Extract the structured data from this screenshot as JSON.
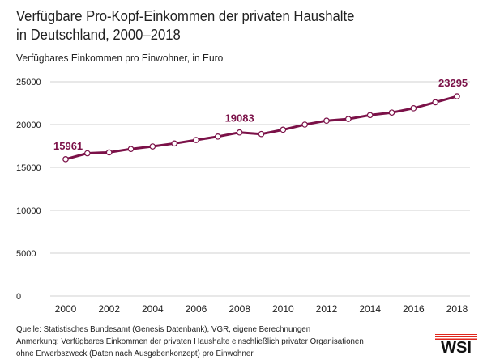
{
  "header": {
    "title_line1": "Verfügbare Pro-Kopf-Einkommen der privaten Haushalte",
    "title_line2": "in Deutschland, 2000–2018",
    "subtitle": "Verfügbares Einkommen pro Einwohner, in Euro"
  },
  "footer": {
    "source": "Quelle: Statistisches Bundesamt (Genesis Datenbank), VGR, eigene Berechnungen",
    "note_line1": "Anmerkung: Verfügbares Einkommen der privaten Haushalte einschließlich privater Organisationen",
    "note_line2": "ohne Erwerbszweck (Daten nach Ausgabenkonzept) pro Einwohner",
    "logo_text": "WSI"
  },
  "colors": {
    "series": "#7b1148",
    "grid": "#d2d2d2",
    "logo_accent": "#e1261c"
  },
  "chart_data": {
    "type": "line",
    "title": "Verfügbare Pro-Kopf-Einkommen der privaten Haushalte in Deutschland, 2000–2018",
    "subtitle": "Verfügbares Einkommen pro Einwohner, in Euro",
    "x": [
      2000,
      2001,
      2002,
      2003,
      2004,
      2005,
      2006,
      2007,
      2008,
      2009,
      2010,
      2011,
      2012,
      2013,
      2014,
      2015,
      2016,
      2017,
      2018
    ],
    "series": [
      {
        "values": [
          15961,
          16650,
          16750,
          17150,
          17450,
          17800,
          18200,
          18600,
          19083,
          18900,
          19400,
          20000,
          20450,
          20650,
          21100,
          21400,
          21900,
          22600,
          23295
        ]
      }
    ],
    "x_ticks": [
      "2000",
      "2002",
      "2004",
      "2006",
      "2008",
      "2010",
      "2012",
      "2014",
      "2016",
      "2018"
    ],
    "y_ticks": [
      "0",
      "5000",
      "10000",
      "15000",
      "20000",
      "25000"
    ],
    "xlim": [
      2000,
      2018
    ],
    "ylim": [
      0,
      25000
    ],
    "grid": true,
    "annotations": [
      {
        "x": 2000,
        "value": 15961,
        "text": "15961"
      },
      {
        "x": 2008,
        "value": 19083,
        "text": "19083"
      },
      {
        "x": 2018,
        "value": 23295,
        "text": "23295"
      }
    ]
  }
}
